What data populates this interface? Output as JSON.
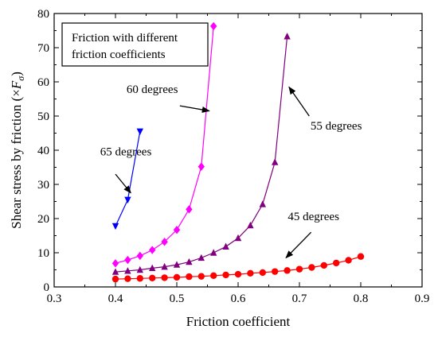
{
  "chart_data": {
    "type": "line",
    "xlabel": "Friction coefficient",
    "ylabel_prefix": "Shear stress by friction (×",
    "ylabel_var": "F",
    "ylabel_sub": "σ",
    "ylabel_suffix": ")",
    "xlim": [
      0.3,
      0.9
    ],
    "ylim": [
      0,
      80
    ],
    "xticks": [
      "0.3",
      "0.4",
      "0.5",
      "0.6",
      "0.7",
      "0.8",
      "0.9"
    ],
    "yticks": [
      "0",
      "10",
      "20",
      "30",
      "40",
      "50",
      "60",
      "70",
      "80"
    ],
    "grid": false,
    "box_text": [
      "Friction with different",
      "friction coefficients"
    ],
    "series": [
      {
        "name": "65 degrees",
        "color": "#0000ff",
        "marker": "triangle-down",
        "x": [
          0.4,
          0.42,
          0.44
        ],
        "y": [
          17.8,
          25.5,
          45.5
        ]
      },
      {
        "name": "60 degrees",
        "color": "#ff00ff",
        "marker": "diamond",
        "x": [
          0.4,
          0.42,
          0.44,
          0.46,
          0.48,
          0.5,
          0.52,
          0.54,
          0.56
        ],
        "y": [
          6.9,
          7.9,
          9.1,
          10.8,
          13.2,
          16.7,
          22.7,
          35.2,
          76.3
        ]
      },
      {
        "name": "55 degrees",
        "color": "#800080",
        "marker": "triangle-up",
        "x": [
          0.4,
          0.42,
          0.44,
          0.46,
          0.48,
          0.5,
          0.52,
          0.54,
          0.56,
          0.58,
          0.6,
          0.62,
          0.64,
          0.66,
          0.68
        ],
        "y": [
          4.4,
          4.7,
          5.0,
          5.5,
          5.9,
          6.5,
          7.3,
          8.5,
          10.0,
          11.8,
          14.3,
          18.0,
          24.2,
          36.5,
          73.3
        ]
      },
      {
        "name": "45 degrees",
        "color": "#ff0000",
        "marker": "circle",
        "x": [
          0.4,
          0.42,
          0.44,
          0.46,
          0.48,
          0.5,
          0.52,
          0.54,
          0.56,
          0.58,
          0.6,
          0.62,
          0.64,
          0.66,
          0.68,
          0.7,
          0.72,
          0.74,
          0.76,
          0.78,
          0.8
        ],
        "y": [
          2.3,
          2.4,
          2.5,
          2.6,
          2.7,
          2.8,
          3.0,
          3.1,
          3.3,
          3.5,
          3.7,
          4.0,
          4.2,
          4.5,
          4.8,
          5.2,
          5.7,
          6.3,
          7.0,
          7.8,
          8.9
        ]
      }
    ],
    "annotations": [
      {
        "text": "65 degrees",
        "text_x": 0.375,
        "text_y": 38.5,
        "arrow_from": [
          0.4,
          33.0
        ],
        "arrow_to": [
          0.425,
          27.5
        ]
      },
      {
        "text": "60 degrees",
        "text_x": 0.418,
        "text_y": 56.8,
        "arrow_from": [
          0.505,
          53.0
        ],
        "arrow_to": [
          0.553,
          51.5
        ]
      },
      {
        "text": "55 degrees",
        "text_x": 0.718,
        "text_y": 46.0,
        "arrow_from": [
          0.716,
          50.0
        ],
        "arrow_to": [
          0.683,
          58.5
        ]
      },
      {
        "text": "45 degrees",
        "text_x": 0.681,
        "text_y": 19.5,
        "arrow_from": [
          0.719,
          16.0
        ],
        "arrow_to": [
          0.678,
          8.5
        ]
      }
    ]
  }
}
